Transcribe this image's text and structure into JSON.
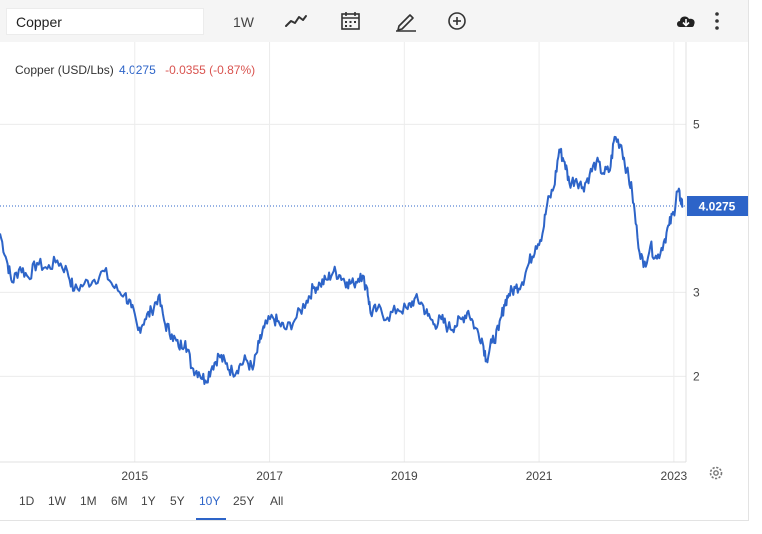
{
  "search": {
    "value": "Copper"
  },
  "toolbar": {
    "interval_label": "1W",
    "icons": [
      "line-chart-type-icon",
      "calendar-icon",
      "draw-pencil-icon",
      "add-indicator-icon",
      "download-cloud-icon",
      "more-options-icon"
    ]
  },
  "legend": {
    "symbol": "Copper (USD/Lbs)",
    "last": "4.0275",
    "change": "-0.0355 (-0.87%)"
  },
  "last_badge": "4.0275",
  "colors": {
    "line": "#2d64c8",
    "accent": "#2d64c8",
    "negative": "#d9534f",
    "grid": "#ececec"
  },
  "ranges": {
    "items": [
      "1D",
      "1W",
      "1M",
      "6M",
      "1Y",
      "5Y",
      "10Y",
      "25Y",
      "All"
    ],
    "active": "10Y"
  },
  "chart_data": {
    "type": "line",
    "title": "",
    "xlabel": "",
    "ylabel": "",
    "ylim": [
      0.98,
      5.98
    ],
    "xlim": [
      2013.0,
      2023.18
    ],
    "yticks": [
      2,
      3,
      5
    ],
    "xticks": [
      "2015",
      "2017",
      "2019",
      "2021",
      "2023"
    ],
    "grid": true,
    "last_value": 4.0275,
    "series": [
      {
        "values": [
          [
            2013.0,
            3.7
          ],
          [
            2013.1,
            3.38
          ],
          [
            2013.18,
            3.12
          ],
          [
            2013.3,
            3.3
          ],
          [
            2013.42,
            3.18
          ],
          [
            2013.55,
            3.35
          ],
          [
            2013.7,
            3.28
          ],
          [
            2013.85,
            3.38
          ],
          [
            2014.0,
            3.25
          ],
          [
            2014.1,
            3.02
          ],
          [
            2014.25,
            3.1
          ],
          [
            2014.4,
            3.15
          ],
          [
            2014.55,
            3.25
          ],
          [
            2014.7,
            3.05
          ],
          [
            2014.85,
            2.98
          ],
          [
            2014.95,
            2.82
          ],
          [
            2015.05,
            2.55
          ],
          [
            2015.15,
            2.68
          ],
          [
            2015.25,
            2.78
          ],
          [
            2015.35,
            2.95
          ],
          [
            2015.45,
            2.62
          ],
          [
            2015.55,
            2.5
          ],
          [
            2015.65,
            2.35
          ],
          [
            2015.75,
            2.42
          ],
          [
            2015.85,
            2.1
          ],
          [
            2015.95,
            2.05
          ],
          [
            2016.05,
            1.95
          ],
          [
            2016.15,
            2.12
          ],
          [
            2016.25,
            2.25
          ],
          [
            2016.35,
            2.15
          ],
          [
            2016.45,
            2.05
          ],
          [
            2016.55,
            2.12
          ],
          [
            2016.65,
            2.2
          ],
          [
            2016.75,
            2.08
          ],
          [
            2016.85,
            2.4
          ],
          [
            2016.92,
            2.58
          ],
          [
            2017.05,
            2.7
          ],
          [
            2017.15,
            2.62
          ],
          [
            2017.25,
            2.56
          ],
          [
            2017.4,
            2.7
          ],
          [
            2017.55,
            2.9
          ],
          [
            2017.65,
            3.05
          ],
          [
            2017.75,
            3.1
          ],
          [
            2017.85,
            3.15
          ],
          [
            2017.95,
            3.25
          ],
          [
            2018.05,
            3.2
          ],
          [
            2018.15,
            3.12
          ],
          [
            2018.25,
            3.1
          ],
          [
            2018.35,
            3.22
          ],
          [
            2018.45,
            3.05
          ],
          [
            2018.5,
            2.75
          ],
          [
            2018.6,
            2.8
          ],
          [
            2018.75,
            2.7
          ],
          [
            2018.9,
            2.8
          ],
          [
            2019.05,
            2.8
          ],
          [
            2019.15,
            2.92
          ],
          [
            2019.25,
            2.88
          ],
          [
            2019.35,
            2.72
          ],
          [
            2019.45,
            2.62
          ],
          [
            2019.55,
            2.68
          ],
          [
            2019.65,
            2.58
          ],
          [
            2019.75,
            2.6
          ],
          [
            2019.85,
            2.68
          ],
          [
            2019.95,
            2.78
          ],
          [
            2020.05,
            2.58
          ],
          [
            2020.15,
            2.45
          ],
          [
            2020.22,
            2.2
          ],
          [
            2020.3,
            2.4
          ],
          [
            2020.4,
            2.55
          ],
          [
            2020.48,
            2.85
          ],
          [
            2020.55,
            2.98
          ],
          [
            2020.65,
            3.05
          ],
          [
            2020.75,
            3.12
          ],
          [
            2020.85,
            3.35
          ],
          [
            2020.95,
            3.55
          ],
          [
            2021.05,
            3.7
          ],
          [
            2021.12,
            4.05
          ],
          [
            2021.22,
            4.25
          ],
          [
            2021.3,
            4.7
          ],
          [
            2021.38,
            4.55
          ],
          [
            2021.45,
            4.3
          ],
          [
            2021.55,
            4.35
          ],
          [
            2021.65,
            4.25
          ],
          [
            2021.75,
            4.4
          ],
          [
            2021.85,
            4.55
          ],
          [
            2021.95,
            4.42
          ],
          [
            2022.05,
            4.45
          ],
          [
            2022.12,
            4.85
          ],
          [
            2022.22,
            4.75
          ],
          [
            2022.3,
            4.45
          ],
          [
            2022.38,
            4.2
          ],
          [
            2022.46,
            3.65
          ],
          [
            2022.55,
            3.3
          ],
          [
            2022.65,
            3.55
          ],
          [
            2022.75,
            3.4
          ],
          [
            2022.85,
            3.6
          ],
          [
            2022.93,
            3.8
          ],
          [
            2023.0,
            3.95
          ],
          [
            2023.05,
            4.2
          ],
          [
            2023.1,
            4.12
          ],
          [
            2023.13,
            4.0275
          ]
        ]
      }
    ]
  }
}
